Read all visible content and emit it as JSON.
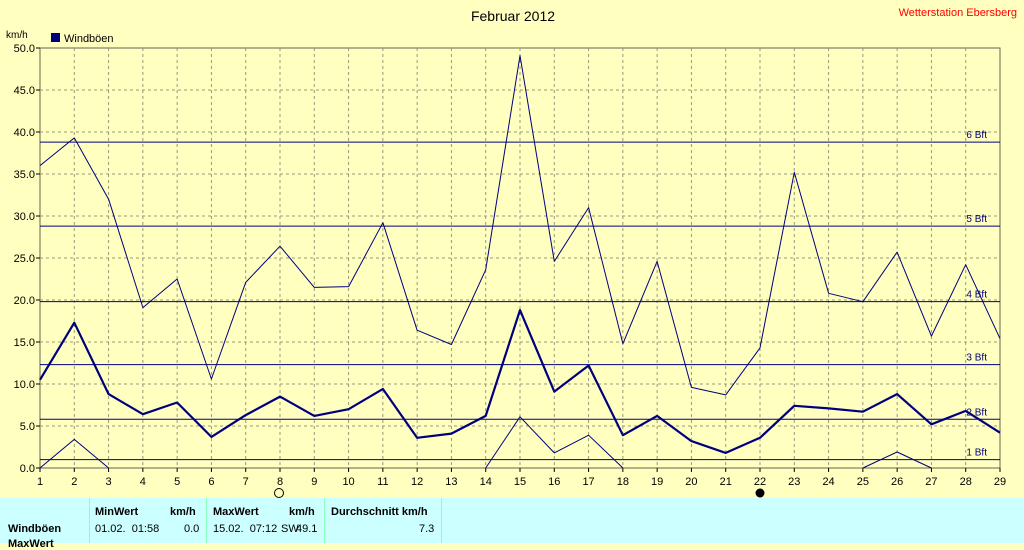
{
  "chart_data": {
    "type": "line",
    "title": "Februar 2012",
    "station": "Wetterstation Ebersberg",
    "ylabel": "km/h",
    "ylim": [
      0,
      50
    ],
    "xlim": [
      1,
      29
    ],
    "grid": true,
    "legend_position": "top-left",
    "legend": "Windböen",
    "y_ticks": [
      "0.0",
      "5.0",
      "10.0",
      "15.0",
      "20.0",
      "25.0",
      "30.0",
      "35.0",
      "40.0",
      "45.0",
      "50.0"
    ],
    "x_ticks": [
      "1",
      "2",
      "3",
      "4",
      "5",
      "6",
      "7",
      "8",
      "9",
      "10",
      "11",
      "12",
      "13",
      "14",
      "15",
      "16",
      "17",
      "18",
      "19",
      "20",
      "21",
      "22",
      "23",
      "24",
      "25",
      "26",
      "27",
      "28",
      "29"
    ],
    "beaufort": [
      {
        "label": "1 Bft",
        "value": 1
      },
      {
        "label": "2 Bft",
        "value": 5.8
      },
      {
        "label": "3 Bft",
        "value": 12.3
      },
      {
        "label": "4 Bft",
        "value": 19.8
      },
      {
        "label": "5 Bft",
        "value": 28.8
      },
      {
        "label": "6 Bft",
        "value": 38.8
      }
    ],
    "x": [
      1,
      2,
      3,
      4,
      5,
      6,
      7,
      8,
      9,
      10,
      11,
      12,
      13,
      14,
      15,
      16,
      17,
      18,
      19,
      20,
      21,
      22,
      23,
      24,
      25,
      26,
      27,
      28,
      29
    ],
    "series": [
      {
        "name": "Windböen",
        "role": "mean",
        "values": [
          10.5,
          17.3,
          8.8,
          6.4,
          7.8,
          3.7,
          6.3,
          8.5,
          6.2,
          7.0,
          9.4,
          3.6,
          4.1,
          6.2,
          18.8,
          9.1,
          12.2,
          3.9,
          6.2,
          3.2,
          1.8,
          3.6,
          7.4,
          7.1,
          6.7,
          8.8,
          5.2,
          6.8,
          4.2
        ]
      },
      {
        "role": "max",
        "values": [
          36.0,
          39.3,
          32.0,
          19.1,
          22.5,
          10.6,
          22.1,
          26.4,
          21.5,
          21.6,
          29.2,
          16.4,
          14.7,
          23.6,
          49.1,
          24.6,
          31.0,
          14.8,
          24.6,
          9.6,
          8.7,
          14.3,
          35.2,
          20.8,
          19.8,
          25.7,
          15.7,
          24.2,
          15.4
        ]
      },
      {
        "role": "min",
        "values": [
          0.0,
          3.4,
          0.0,
          -1,
          -1,
          -1,
          -1,
          -1,
          -1,
          -1,
          -1,
          -1,
          -1,
          0.0,
          6.1,
          1.8,
          3.9,
          0.0,
          -1,
          -1,
          -1,
          -1,
          -1,
          -1,
          0.0,
          1.9,
          0.0,
          -1,
          -1
        ]
      }
    ],
    "colors": {
      "background": "#ffffc0",
      "line": "#00007f",
      "grid": "#999977",
      "station": "#ff0000",
      "stats_bg": "#ccffff"
    }
  },
  "stats": {
    "row1_label": "Windböen",
    "row2_label": "MaxWert",
    "min_header": "MinWert",
    "min_unit": "km/h",
    "min_date": "01.02.  01:58",
    "min_value": "0.0",
    "max_header": "MaxWert",
    "max_unit": "km/h",
    "max_date": "15.02.  07:12",
    "max_dir": "SW",
    "max_value": "49.1",
    "avg_header": "Durchschnitt km/h",
    "avg_value": "7.3"
  }
}
